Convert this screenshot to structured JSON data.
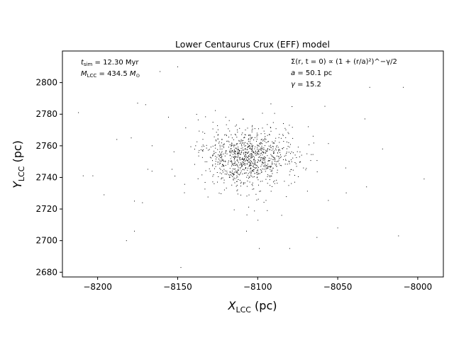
{
  "chart_data": {
    "type": "scatter",
    "title": "Lower Centaurus Crux (EFF) model",
    "xlabel": {
      "base": "X",
      "sub": "LCC",
      "unit": " (pc)"
    },
    "ylabel": {
      "base": "Y",
      "sub": "LCC",
      "unit": " (pc)"
    },
    "xlim": [
      -8222,
      -7984
    ],
    "ylim": [
      2677,
      2820
    ],
    "xticks": [
      -8200,
      -8150,
      -8100,
      -8050,
      -8000
    ],
    "xtick_labels": [
      "−8200",
      "−8150",
      "−8100",
      "−8050",
      "−8000"
    ],
    "yticks": [
      2680,
      2700,
      2720,
      2740,
      2760,
      2780,
      2800
    ],
    "ytick_labels": [
      "2680",
      "2700",
      "2720",
      "2740",
      "2760",
      "2780",
      "2800"
    ],
    "grid": false,
    "legend": "none",
    "marker_color": "#000000",
    "annotations_left": {
      "t_sim": {
        "sym": "t",
        "sub": "sim",
        "text": " = 12.30 Myr"
      },
      "m_lcc": {
        "sym": "M",
        "sub": "LCC",
        "text": " = 434.5 ",
        "unit_sym": "M",
        "unit_sub": "⊙"
      }
    },
    "annotations_right": {
      "profile": "Σ(r, t = 0) ∝ (1 + (r/a)²)^−γ/2",
      "a": {
        "sym": "a",
        "text": " = 50.1 pc"
      },
      "gamma": {
        "sym": "γ",
        "text": " = 15.2"
      }
    },
    "profile": {
      "center_x": -8105,
      "center_y": 2752,
      "a": 50.1,
      "gamma": 15.2,
      "n_points": 1000
    },
    "outliers": [
      [
        -8212,
        2781
      ],
      [
        -8209,
        2741
      ],
      [
        -8203,
        2741
      ],
      [
        -8196,
        2729
      ],
      [
        -8188,
        2764
      ],
      [
        -8182,
        2700
      ],
      [
        -8179,
        2765
      ],
      [
        -8177,
        2725
      ],
      [
        -8177,
        2706
      ],
      [
        -8175,
        2787
      ],
      [
        -8172,
        2724
      ],
      [
        -8170,
        2786
      ],
      [
        -8166,
        2760
      ],
      [
        -8161,
        2807
      ],
      [
        -8150,
        2810
      ],
      [
        -8148,
        2683
      ],
      [
        -8107,
        2706
      ],
      [
        -8099,
        2695
      ],
      [
        -8094,
        2719
      ],
      [
        -8085,
        2716
      ],
      [
        -8080,
        2695
      ],
      [
        -8063,
        2702
      ],
      [
        -8058,
        2785
      ],
      [
        -8050,
        2708
      ],
      [
        -8045,
        2746
      ],
      [
        -8033,
        2777
      ],
      [
        -8032,
        2734
      ],
      [
        -8030,
        2797
      ],
      [
        -8022,
        2758
      ],
      [
        -8012,
        2703
      ],
      [
        -8009,
        2797
      ],
      [
        -7996,
        2739
      ]
    ]
  }
}
